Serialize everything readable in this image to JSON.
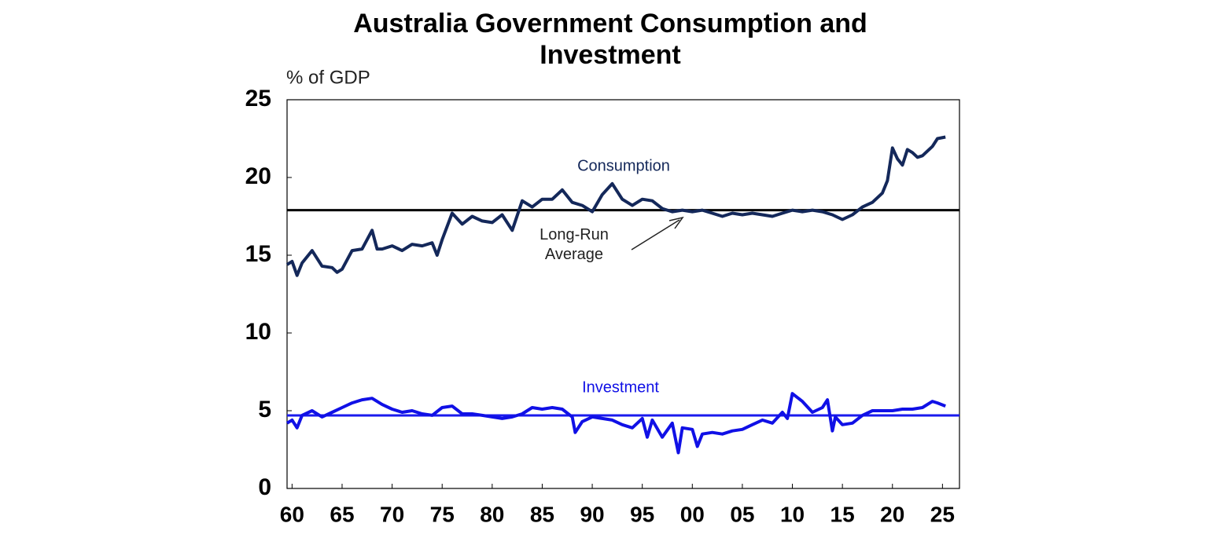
{
  "chart_data": {
    "type": "line",
    "title": "Australia Government Consumption and Investment",
    "y_label": "% of GDP",
    "annotation": "Long-Run Average",
    "xlim": [
      1959.5,
      2026.7
    ],
    "ylim": [
      0,
      25
    ],
    "yticks": [
      0,
      5,
      10,
      15,
      20,
      25
    ],
    "xticks": [
      {
        "value": 1960,
        "label": "60"
      },
      {
        "value": 1965,
        "label": "65"
      },
      {
        "value": 1970,
        "label": "70"
      },
      {
        "value": 1975,
        "label": "75"
      },
      {
        "value": 1980,
        "label": "80"
      },
      {
        "value": 1985,
        "label": "85"
      },
      {
        "value": 1990,
        "label": "90"
      },
      {
        "value": 1995,
        "label": "95"
      },
      {
        "value": 2000,
        "label": "00"
      },
      {
        "value": 2005,
        "label": "05"
      },
      {
        "value": 2010,
        "label": "10"
      },
      {
        "value": 2015,
        "label": "15"
      },
      {
        "value": 2020,
        "label": "20"
      },
      {
        "value": 2025,
        "label": "25"
      }
    ],
    "reference_lines": [
      {
        "value": 17.9,
        "color": "#000000"
      },
      {
        "value": 4.7,
        "color": "#1a1aee"
      }
    ],
    "series": [
      {
        "name": "Consumption",
        "color": "#14285a",
        "x": [
          1959.5,
          1960,
          1960.5,
          1961,
          1962,
          1963,
          1964,
          1964.5,
          1965,
          1966,
          1967,
          1968,
          1968.5,
          1969,
          1970,
          1971,
          1972,
          1973,
          1974,
          1974.5,
          1975,
          1976,
          1977,
          1978,
          1979,
          1980,
          1981,
          1982,
          1983,
          1984,
          1985,
          1986,
          1987,
          1988,
          1989,
          1990,
          1991,
          1992,
          1993,
          1994,
          1995,
          1996,
          1997,
          1998,
          1999,
          2000,
          2001,
          2002,
          2003,
          2004,
          2005,
          2006,
          2007,
          2008,
          2009,
          2010,
          2011,
          2012,
          2013,
          2014,
          2015,
          2016,
          2017,
          2018,
          2019,
          2019.5,
          2020,
          2020.5,
          2021,
          2021.5,
          2022,
          2022.5,
          2023,
          2024,
          2024.5,
          2025.3
        ],
        "values": [
          14.4,
          14.6,
          13.7,
          14.5,
          15.3,
          14.3,
          14.2,
          13.9,
          14.1,
          15.3,
          15.4,
          16.6,
          15.4,
          15.4,
          15.6,
          15.3,
          15.7,
          15.6,
          15.8,
          15.0,
          16.0,
          17.7,
          17.0,
          17.5,
          17.2,
          17.1,
          17.6,
          16.6,
          18.5,
          18.1,
          18.6,
          18.6,
          19.2,
          18.4,
          18.2,
          17.8,
          18.9,
          19.6,
          18.6,
          18.2,
          18.6,
          18.5,
          18.0,
          17.8,
          17.9,
          17.8,
          17.9,
          17.7,
          17.5,
          17.7,
          17.6,
          17.7,
          17.6,
          17.5,
          17.7,
          17.9,
          17.8,
          17.9,
          17.8,
          17.6,
          17.3,
          17.6,
          18.1,
          18.4,
          19.0,
          19.8,
          21.9,
          21.2,
          20.8,
          21.8,
          21.6,
          21.3,
          21.4,
          22.0,
          22.5,
          22.6
        ]
      },
      {
        "name": "Investment",
        "color": "#1010e6",
        "x": [
          1959.5,
          1960,
          1960.5,
          1961,
          1962,
          1963,
          1964,
          1965,
          1966,
          1967,
          1968,
          1969,
          1970,
          1971,
          1972,
          1973,
          1974,
          1975,
          1976,
          1977,
          1978,
          1979,
          1980,
          1981,
          1982,
          1983,
          1984,
          1985,
          1986,
          1987,
          1988,
          1988.3,
          1989,
          1990,
          1991,
          1992,
          1993,
          1994,
          1995,
          1995.5,
          1996,
          1997,
          1998,
          1998.6,
          1999,
          2000,
          2000.5,
          2001,
          2002,
          2003,
          2004,
          2005,
          2006,
          2007,
          2008,
          2009,
          2009.5,
          2010,
          2011,
          2012,
          2013,
          2013.5,
          2014,
          2014.3,
          2015,
          2016,
          2017,
          2018,
          2019,
          2020,
          2021,
          2022,
          2023,
          2024,
          2024.5,
          2025.3
        ],
        "values": [
          4.2,
          4.4,
          3.9,
          4.7,
          5.0,
          4.6,
          4.9,
          5.2,
          5.5,
          5.7,
          5.8,
          5.4,
          5.1,
          4.9,
          5.0,
          4.8,
          4.7,
          5.2,
          5.3,
          4.8,
          4.8,
          4.7,
          4.6,
          4.5,
          4.6,
          4.8,
          5.2,
          5.1,
          5.2,
          5.1,
          4.6,
          3.6,
          4.3,
          4.6,
          4.5,
          4.4,
          4.1,
          3.9,
          4.5,
          3.3,
          4.4,
          3.3,
          4.2,
          2.3,
          3.9,
          3.8,
          2.7,
          3.5,
          3.6,
          3.5,
          3.7,
          3.8,
          4.1,
          4.4,
          4.2,
          4.9,
          4.5,
          6.1,
          5.6,
          4.9,
          5.2,
          5.7,
          3.7,
          4.6,
          4.1,
          4.2,
          4.7,
          5.0,
          5.0,
          5.0,
          5.1,
          5.1,
          5.2,
          5.6,
          5.5,
          5.3
        ]
      }
    ]
  }
}
